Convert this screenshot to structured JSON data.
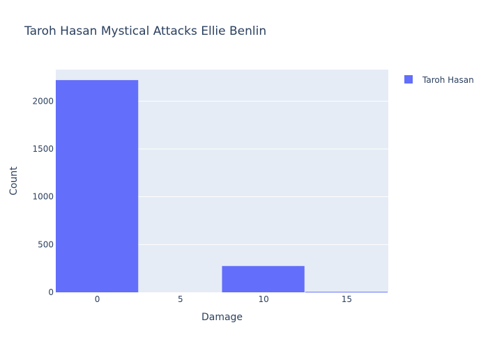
{
  "chart_data": {
    "type": "bar",
    "title": "Taroh Hasan Mystical Attacks Ellie Benlin",
    "xlabel": "Damage",
    "ylabel": "Count",
    "bin_width": 5,
    "xlim": [
      -2.5,
      17.5
    ],
    "ylim": [
      0,
      2330
    ],
    "x_ticks": [
      0,
      5,
      10,
      15
    ],
    "y_ticks": [
      0,
      500,
      1000,
      1500,
      2000
    ],
    "grid": true,
    "legend_position": "top-right",
    "colors": {
      "bar": "#636efa",
      "plot_bg": "#e5ecf6",
      "text": "#2a3f5f"
    },
    "series": [
      {
        "name": "Taroh Hasan",
        "bins": [
          {
            "x": 0,
            "value": 2220
          },
          {
            "x": 5,
            "value": 0
          },
          {
            "x": 10,
            "value": 275
          },
          {
            "x": 15,
            "value": 5
          }
        ]
      }
    ]
  }
}
